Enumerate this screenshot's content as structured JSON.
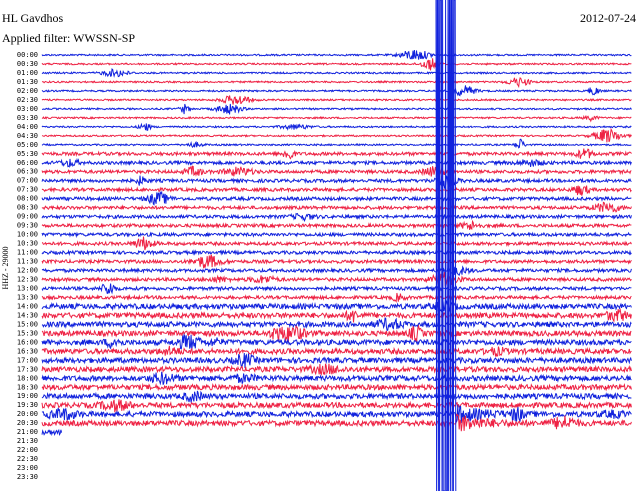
{
  "header": {
    "station": "HL Gavdhos",
    "filter": "Applied filter: WWSSN-SP",
    "date": "2012-07-24"
  },
  "axis_label": "HHZ - 29000",
  "rows": [
    "00:00",
    "00:30",
    "01:00",
    "01:30",
    "02:00",
    "02:30",
    "03:00",
    "03:30",
    "04:00",
    "04:30",
    "05:00",
    "05:30",
    "06:00",
    "06:30",
    "07:00",
    "07:30",
    "08:00",
    "08:30",
    "09:00",
    "09:30",
    "10:00",
    "10:30",
    "11:00",
    "11:30",
    "12:00",
    "12:30",
    "13:00",
    "13:30",
    "14:00",
    "14:30",
    "15:00",
    "15:30",
    "16:00",
    "16:30",
    "17:00",
    "17:30",
    "18:00",
    "18:30",
    "19:00",
    "19:30",
    "20:00",
    "20:30",
    "21:00",
    "21:30",
    "22:00",
    "22:30",
    "23:00",
    "23:30"
  ]
}
